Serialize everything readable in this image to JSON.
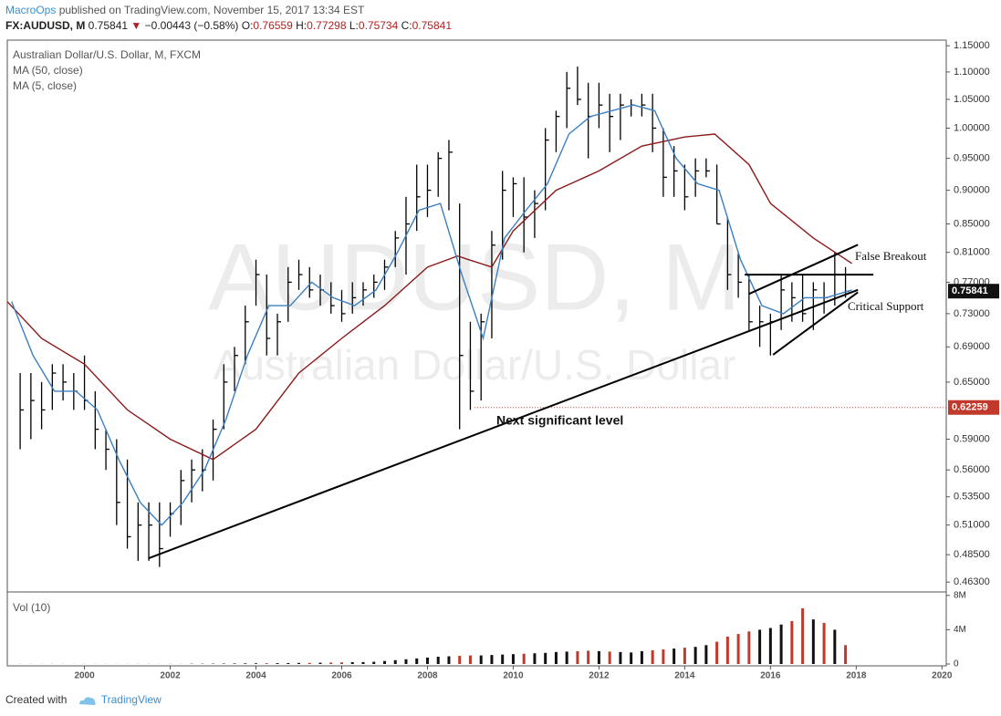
{
  "header": {
    "author": "MacroOps",
    "published": "published on TradingView.com, November 15, 2017 13:34 EST",
    "symbol": "FX:AUDUSD, M",
    "price": "0.75841",
    "arrow": "▼",
    "change": "−0.00443 (−0.58%)",
    "ohlc": [
      {
        "key": "O:",
        "value": "0.76559"
      },
      {
        "key": "H:",
        "value": "0.77298"
      },
      {
        "key": "L:",
        "value": "0.75734"
      },
      {
        "key": "C:",
        "value": "0.75841"
      }
    ]
  },
  "footer": {
    "text": "Created with",
    "brand": "TradingView"
  },
  "chart_data": {
    "type": "ohlc",
    "log": true,
    "name": "Australian Dollar/U.S. Dollar, M, FXCM",
    "color": "#000000",
    "x": [
      1998.5,
      1998.75,
      1999,
      1999.25,
      1999.5,
      1999.75,
      2000,
      2000.25,
      2000.5,
      2000.75,
      2001,
      2001.25,
      2001.5,
      2001.75,
      2002,
      2002.25,
      2002.5,
      2002.75,
      2003,
      2003.25,
      2003.5,
      2003.75,
      2004,
      2004.25,
      2004.5,
      2004.75,
      2005,
      2005.25,
      2005.5,
      2005.75,
      2006,
      2006.25,
      2006.5,
      2006.75,
      2007,
      2007.25,
      2007.5,
      2007.75,
      2008,
      2008.25,
      2008.5,
      2008.75,
      2009,
      2009.25,
      2009.5,
      2009.75,
      2010,
      2010.25,
      2010.5,
      2010.75,
      2011,
      2011.25,
      2011.5,
      2011.75,
      2012,
      2012.25,
      2012.5,
      2012.75,
      2013,
      2013.25,
      2013.5,
      2013.75,
      2014,
      2014.25,
      2014.5,
      2014.75,
      2015,
      2015.25,
      2015.5,
      2015.75,
      2016,
      2016.25,
      2016.5,
      2016.75,
      2017,
      2017.25,
      2017.5,
      2017.75
    ],
    "high": [
      0.66,
      0.66,
      0.65,
      0.67,
      0.67,
      0.66,
      0.68,
      0.64,
      0.6,
      0.59,
      0.57,
      0.53,
      0.53,
      0.53,
      0.53,
      0.56,
      0.57,
      0.58,
      0.61,
      0.67,
      0.69,
      0.74,
      0.8,
      0.78,
      0.73,
      0.79,
      0.8,
      0.79,
      0.78,
      0.77,
      0.76,
      0.77,
      0.77,
      0.78,
      0.8,
      0.84,
      0.89,
      0.94,
      0.94,
      0.96,
      0.98,
      0.88,
      0.72,
      0.73,
      0.84,
      0.93,
      0.92,
      0.92,
      0.9,
      1.0,
      1.03,
      1.1,
      1.11,
      1.08,
      1.08,
      1.06,
      1.06,
      1.05,
      1.06,
      1.06,
      1.0,
      0.97,
      0.94,
      0.95,
      0.95,
      0.94,
      0.86,
      0.81,
      0.78,
      0.74,
      0.73,
      0.78,
      0.77,
      0.78,
      0.77,
      0.77,
      0.81,
      0.79
    ],
    "low": [
      0.58,
      0.59,
      0.6,
      0.62,
      0.63,
      0.62,
      0.62,
      0.58,
      0.56,
      0.51,
      0.49,
      0.48,
      0.48,
      0.475,
      0.5,
      0.51,
      0.53,
      0.54,
      0.55,
      0.6,
      0.64,
      0.67,
      0.74,
      0.68,
      0.68,
      0.72,
      0.76,
      0.75,
      0.74,
      0.73,
      0.72,
      0.73,
      0.74,
      0.75,
      0.76,
      0.79,
      0.78,
      0.84,
      0.86,
      0.89,
      0.87,
      0.6,
      0.62,
      0.63,
      0.7,
      0.8,
      0.86,
      0.81,
      0.83,
      0.87,
      0.96,
      1.0,
      1.04,
      0.95,
      1.0,
      0.96,
      0.98,
      1.02,
      1.02,
      0.96,
      0.89,
      0.89,
      0.87,
      0.89,
      0.92,
      0.85,
      0.76,
      0.75,
      0.71,
      0.69,
      0.68,
      0.71,
      0.72,
      0.72,
      0.71,
      0.73,
      0.74,
      0.75
    ],
    "close": [
      0.62,
      0.63,
      0.62,
      0.66,
      0.65,
      0.64,
      0.63,
      0.6,
      0.58,
      0.53,
      0.5,
      0.51,
      0.51,
      0.49,
      0.52,
      0.55,
      0.56,
      0.56,
      0.6,
      0.65,
      0.68,
      0.72,
      0.78,
      0.7,
      0.72,
      0.77,
      0.78,
      0.76,
      0.76,
      0.74,
      0.73,
      0.75,
      0.76,
      0.77,
      0.79,
      0.83,
      0.85,
      0.89,
      0.9,
      0.95,
      0.96,
      0.68,
      0.64,
      0.72,
      0.82,
      0.9,
      0.91,
      0.86,
      0.88,
      0.98,
      1.02,
      1.07,
      1.05,
      1.02,
      1.04,
      1.02,
      1.04,
      1.04,
      1.04,
      1.0,
      0.92,
      0.93,
      0.89,
      0.93,
      0.93,
      0.85,
      0.78,
      0.77,
      0.72,
      0.72,
      0.72,
      0.76,
      0.75,
      0.73,
      0.76,
      0.75,
      0.78,
      0.758
    ],
    "xlim": [
      1998.2,
      2020.1
    ],
    "xticks": [
      2000,
      2002,
      2004,
      2006,
      2008,
      2010,
      2012,
      2014,
      2016,
      2018,
      2020
    ],
    "ylim": [
      0.456,
      1.161
    ],
    "yticks": [
      {
        "value": 1.15,
        "label": "1.15000"
      },
      {
        "value": 1.1,
        "label": "1.10000"
      },
      {
        "value": 1.05,
        "label": "1.05000"
      },
      {
        "value": 1.0,
        "label": "1.00000"
      },
      {
        "value": 0.95,
        "label": "0.95000"
      },
      {
        "value": 0.9,
        "label": "0.90000"
      },
      {
        "value": 0.85,
        "label": "0.85000"
      },
      {
        "value": 0.81,
        "label": "0.81000"
      },
      {
        "value": 0.77,
        "label": "0.77000"
      },
      {
        "value": 0.73,
        "label": "0.73000"
      },
      {
        "value": 0.69,
        "label": "0.69000"
      },
      {
        "value": 0.65,
        "label": "0.65000"
      },
      {
        "value": 0.59,
        "label": "0.59000"
      },
      {
        "value": 0.56,
        "label": "0.56000"
      },
      {
        "value": 0.535,
        "label": "0.53500"
      },
      {
        "value": 0.51,
        "label": "0.51000"
      },
      {
        "value": 0.485,
        "label": "0.48500"
      },
      {
        "value": 0.463,
        "label": "0.46300"
      }
    ],
    "grid": false,
    "ma": [
      {
        "name": "MA (50, close)",
        "color": "#8b1a1a",
        "x": [
          1998.2,
          1999,
          2000,
          2001,
          2002,
          2003,
          2004,
          2005,
          2006,
          2007,
          2008,
          2008.7,
          2009.5,
          2010,
          2011,
          2012,
          2013,
          2014,
          2014.7,
          2015.5,
          2016,
          2017,
          2017.9
        ],
        "values": [
          0.745,
          0.7,
          0.67,
          0.62,
          0.59,
          0.57,
          0.6,
          0.66,
          0.7,
          0.74,
          0.79,
          0.805,
          0.79,
          0.84,
          0.9,
          0.93,
          0.97,
          0.985,
          0.99,
          0.94,
          0.88,
          0.83,
          0.795
        ]
      },
      {
        "name": "MA (5, close)",
        "color": "#3a7fc1",
        "x": [
          1998.3,
          1998.8,
          1999.3,
          1999.8,
          2000.3,
          2000.8,
          2001.3,
          2001.8,
          2002.3,
          2002.8,
          2003.3,
          2003.8,
          2004.3,
          2004.8,
          2005.3,
          2005.8,
          2006.3,
          2006.8,
          2007.3,
          2007.8,
          2008.3,
          2008.8,
          2009.3,
          2009.8,
          2010.3,
          2010.8,
          2011.3,
          2011.8,
          2012.3,
          2012.8,
          2013.3,
          2013.8,
          2014.3,
          2014.8,
          2015.3,
          2015.8,
          2016.3,
          2016.8,
          2017.3,
          2017.9
        ],
        "values": [
          0.745,
          0.68,
          0.64,
          0.64,
          0.62,
          0.57,
          0.53,
          0.51,
          0.53,
          0.56,
          0.61,
          0.68,
          0.74,
          0.74,
          0.77,
          0.75,
          0.74,
          0.76,
          0.81,
          0.87,
          0.88,
          0.78,
          0.7,
          0.83,
          0.87,
          0.91,
          0.99,
          1.02,
          1.03,
          1.04,
          1.03,
          0.95,
          0.91,
          0.9,
          0.8,
          0.74,
          0.73,
          0.75,
          0.75,
          0.76
        ]
      }
    ],
    "volume": {
      "name": "Vol (10)",
      "up_color": "#111111",
      "down_color": "#c0392b",
      "values": [
        10000,
        10000,
        10000,
        10000,
        10000,
        10000,
        10000,
        10000,
        10000,
        10000,
        10000,
        10000,
        10000,
        10000,
        10000,
        10000,
        30000,
        30000,
        40000,
        50000,
        60000,
        70000,
        80000,
        90000,
        100000,
        110000,
        120000,
        130000,
        150000,
        170000,
        190000,
        210000,
        230000,
        260000,
        350000,
        450000,
        550000,
        650000,
        750000,
        850000,
        900000,
        950000,
        1000000,
        1000000,
        1050000,
        1100000,
        1150000,
        1200000,
        1250000,
        1300000,
        1400000,
        1450000,
        1500000,
        1550000,
        1500000,
        1450000,
        1400000,
        1350000,
        1500000,
        1600000,
        1700000,
        1800000,
        1900000,
        2000000,
        2200000,
        2600000,
        3200000,
        3500000,
        3800000,
        4000000,
        4200000,
        4600000,
        5000000,
        6500000,
        5200000,
        4800000,
        4000000,
        2200000
      ],
      "ylim": [
        0,
        8300000
      ],
      "yticks": [
        {
          "value": 8000000,
          "label": "8M"
        },
        {
          "value": 4000000,
          "label": "4M"
        },
        0
      ]
    },
    "last_price": 0.75841,
    "last_color": "#111111",
    "level": {
      "value": 0.62259,
      "from": 2009.1,
      "color": "#c0392b"
    },
    "trendlines": [
      {
        "x": [
          2001.49,
          2018.04
        ],
        "y": [
          0.482,
          0.76
        ]
      },
      {
        "x": [
          2015.49,
          2018.04
        ],
        "y": [
          0.7546,
          0.8205
        ]
      },
      {
        "x": [
          2016.06,
          2018.04
        ],
        "y": [
          0.6809,
          0.7569
        ]
      },
      {
        "x": [
          2015.4,
          2018.4
        ],
        "y": [
          0.78,
          0.78
        ]
      }
    ],
    "annotations": [
      "False Breakout",
      "Critical Support",
      "Next significant level"
    ],
    "watermark": [
      "AUDUSD, M",
      "Australian Dollar/U.S. Dollar"
    ]
  }
}
